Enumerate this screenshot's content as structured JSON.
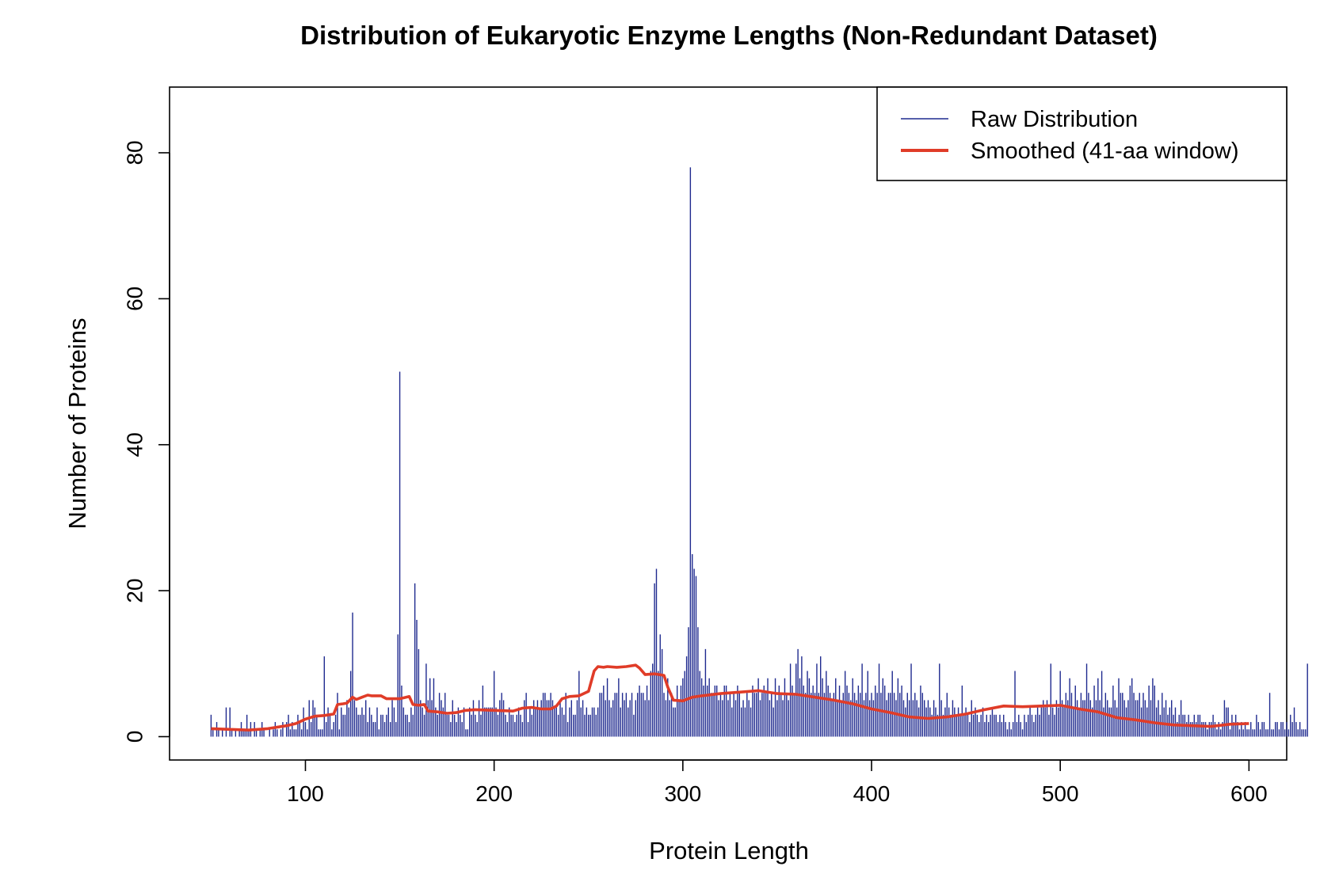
{
  "chart_data": {
    "type": "bar",
    "title": "Distribution of Eukaryotic Enzyme Lengths (Non-Redundant Dataset)",
    "xlabel": "Protein Length",
    "ylabel": "Number of Proteins",
    "xlim": [
      28,
      620
    ],
    "ylim": [
      -3.2,
      89
    ],
    "xticks": [
      "100",
      "200",
      "300",
      "400",
      "500",
      "600"
    ],
    "yticks": [
      "0",
      "20",
      "40",
      "60",
      "80"
    ],
    "grid": false,
    "legend_position": "top-right",
    "series": [
      {
        "name": "Raw Distribution",
        "kind": "spikes",
        "color": "#1f2a8f",
        "x_start": 50,
        "x_step": 1,
        "values": [
          3,
          1,
          0,
          2,
          1,
          0,
          1,
          0,
          4,
          0,
          4,
          1,
          0,
          1,
          0,
          1,
          2,
          1,
          1,
          3,
          1,
          2,
          0,
          2,
          1,
          0,
          1,
          2,
          1,
          0,
          0,
          1,
          0,
          1,
          2,
          1,
          0,
          1,
          2,
          0,
          2,
          3,
          1,
          2,
          1,
          1,
          3,
          2,
          1,
          4,
          2,
          1,
          5,
          2,
          5,
          4,
          3,
          1,
          1,
          1,
          11,
          2,
          4,
          3,
          1,
          2,
          3,
          6,
          1,
          4,
          3,
          3,
          5,
          4,
          9,
          17,
          5,
          4,
          3,
          3,
          4,
          3,
          5,
          2,
          4,
          3,
          2,
          2,
          4,
          1,
          3,
          3,
          2,
          3,
          4,
          2,
          5,
          4,
          2,
          14,
          50,
          7,
          4,
          3,
          3,
          2,
          4,
          3,
          21,
          16,
          12,
          5,
          4,
          3,
          10,
          5,
          8,
          5,
          8,
          4,
          3,
          6,
          5,
          4,
          6,
          3,
          3,
          2,
          5,
          3,
          2,
          4,
          3,
          2,
          4,
          1,
          1,
          4,
          3,
          5,
          3,
          2,
          5,
          3,
          7,
          4,
          4,
          4,
          4,
          4,
          9,
          4,
          3,
          5,
          6,
          5,
          3,
          2,
          4,
          3,
          3,
          2,
          3,
          4,
          3,
          2,
          5,
          6,
          2,
          4,
          3,
          5,
          4,
          5,
          4,
          5,
          6,
          6,
          5,
          5,
          6,
          5,
          4,
          4,
          3,
          5,
          4,
          3,
          6,
          2,
          4,
          5,
          3,
          3,
          5,
          9,
          4,
          5,
          3,
          4,
          3,
          3,
          4,
          4,
          3,
          4,
          6,
          6,
          7,
          5,
          8,
          5,
          4,
          5,
          6,
          6,
          8,
          4,
          6,
          5,
          6,
          4,
          5,
          6,
          3,
          5,
          6,
          7,
          6,
          6,
          5,
          7,
          5,
          9,
          10,
          21,
          23,
          9,
          14,
          12,
          6,
          5,
          8,
          5,
          6,
          4,
          4,
          7,
          5,
          7,
          8,
          9,
          11,
          15,
          78,
          25,
          23,
          22,
          15,
          9,
          8,
          7,
          12,
          7,
          8,
          6,
          6,
          7,
          7,
          5,
          6,
          5,
          7,
          7,
          5,
          6,
          4,
          6,
          5,
          7,
          6,
          4,
          5,
          4,
          6,
          5,
          4,
          7,
          6,
          6,
          8,
          5,
          6,
          7,
          6,
          8,
          5,
          6,
          4,
          8,
          5,
          7,
          6,
          5,
          8,
          6,
          5,
          10,
          7,
          6,
          10,
          12,
          8,
          11,
          7,
          6,
          9,
          8,
          6,
          7,
          6,
          10,
          6,
          11,
          8,
          6,
          9,
          7,
          6,
          5,
          6,
          8,
          5,
          7,
          5,
          6,
          9,
          7,
          6,
          5,
          8,
          6,
          5,
          7,
          6,
          10,
          5,
          6,
          9,
          5,
          6,
          5,
          7,
          6,
          10,
          6,
          8,
          7,
          5,
          6,
          6,
          9,
          6,
          5,
          8,
          6,
          7,
          5,
          4,
          6,
          5,
          10,
          5,
          6,
          5,
          4,
          7,
          6,
          5,
          4,
          5,
          4,
          3,
          5,
          4,
          3,
          10,
          5,
          3,
          4,
          6,
          4,
          3,
          5,
          4,
          3,
          4,
          3,
          7,
          3,
          4,
          3,
          2,
          5,
          3,
          4,
          3,
          2,
          3,
          4,
          2,
          3,
          2,
          3,
          4,
          3,
          3,
          2,
          3,
          2,
          3,
          2,
          1,
          2,
          1,
          2,
          9,
          2,
          3,
          2,
          1,
          3,
          2,
          3,
          4,
          3,
          2,
          3,
          4,
          3,
          4,
          5,
          4,
          5,
          3,
          10,
          4,
          3,
          5,
          4,
          9,
          5,
          4,
          6,
          5,
          8,
          6,
          4,
          7,
          5,
          4,
          6,
          5,
          5,
          10,
          6,
          5,
          4,
          7,
          5,
          8,
          5,
          9,
          4,
          6,
          5,
          4,
          4,
          7,
          5,
          4,
          8,
          6,
          6,
          5,
          4,
          5,
          7,
          8,
          6,
          5,
          5,
          6,
          4,
          6,
          5,
          4,
          7,
          5,
          8,
          7,
          4,
          5,
          3,
          6,
          4,
          5,
          3,
          4,
          5,
          3,
          4,
          2,
          3,
          5,
          3,
          3,
          2,
          3,
          2,
          2,
          3,
          2,
          3,
          3,
          2,
          2,
          2,
          1,
          2,
          2,
          3,
          2,
          1,
          2,
          1,
          2,
          5,
          4,
          4,
          1,
          3,
          2,
          3,
          2,
          1,
          2,
          1,
          2,
          1,
          1,
          2,
          1,
          1,
          3,
          2,
          1,
          2,
          2,
          1,
          1,
          6,
          1,
          1,
          2,
          2,
          1,
          2,
          2,
          1,
          2,
          1,
          3,
          2,
          4,
          2,
          1,
          2,
          1,
          1,
          1,
          10
        ]
      },
      {
        "name": "Smoothed (41-aa window)",
        "kind": "line",
        "color": "#e03c28",
        "x": [
          50,
          60,
          70,
          80,
          90,
          95,
          100,
          105,
          110,
          115,
          117,
          120,
          122,
          125,
          127,
          130,
          133,
          135,
          140,
          143,
          150,
          155,
          157,
          160,
          163,
          165,
          170,
          175,
          180,
          185,
          190,
          200,
          210,
          215,
          220,
          225,
          230,
          233,
          236,
          240,
          245,
          250,
          253,
          255,
          258,
          260,
          265,
          270,
          275,
          277,
          280,
          285,
          290,
          292,
          295,
          300,
          305,
          310,
          320,
          330,
          340,
          350,
          360,
          370,
          380,
          390,
          400,
          410,
          420,
          430,
          440,
          450,
          460,
          470,
          480,
          490,
          500,
          510,
          520,
          530,
          540,
          550,
          560,
          570,
          580,
          590,
          600
        ],
        "y": [
          1.1,
          1.0,
          0.9,
          1.1,
          1.5,
          1.8,
          2.4,
          2.8,
          2.9,
          3.1,
          4.4,
          4.5,
          4.6,
          5.4,
          5.1,
          5.4,
          5.7,
          5.6,
          5.6,
          5.2,
          5.2,
          5.5,
          4.4,
          4.3,
          4.4,
          3.5,
          3.4,
          3.2,
          3.3,
          3.6,
          3.7,
          3.6,
          3.5,
          3.9,
          4.0,
          3.8,
          3.8,
          4.2,
          5.2,
          5.5,
          5.6,
          6.2,
          9.0,
          9.6,
          9.5,
          9.6,
          9.5,
          9.6,
          9.8,
          9.4,
          8.5,
          8.6,
          8.4,
          6.8,
          5.0,
          4.9,
          5.4,
          5.6,
          5.9,
          6.1,
          6.3,
          5.9,
          5.8,
          5.4,
          5.0,
          4.5,
          3.8,
          3.3,
          2.7,
          2.5,
          2.7,
          3.1,
          3.7,
          4.2,
          4.1,
          4.2,
          4.3,
          3.8,
          3.4,
          2.6,
          2.3,
          1.9,
          1.6,
          1.5,
          1.4,
          1.7,
          1.8
        ]
      }
    ]
  }
}
